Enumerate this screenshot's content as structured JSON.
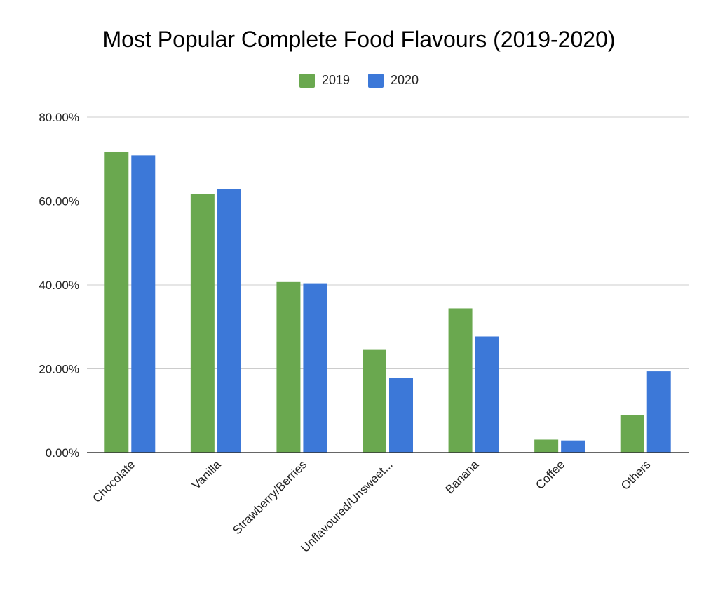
{
  "chart_data": {
    "type": "bar",
    "title": "Most Popular Complete Food Flavours (2019-2020)",
    "xlabel": "",
    "ylabel": "",
    "categories": [
      "Chocolate",
      "Vanilla",
      "Strawberry/Berries",
      "Unflavoured/Unsweet...",
      "Banana",
      "Coffee",
      "Others"
    ],
    "series": [
      {
        "name": "2019",
        "color": "#6aa84f",
        "values": [
          71.8,
          61.6,
          40.7,
          24.5,
          34.4,
          3.1,
          8.9
        ]
      },
      {
        "name": "2020",
        "color": "#3c78d8",
        "values": [
          70.9,
          62.8,
          40.4,
          17.9,
          27.7,
          2.9,
          19.4
        ]
      }
    ],
    "ylim": [
      0,
      80
    ],
    "yticks": [
      "0.00%",
      "20.00%",
      "40.00%",
      "60.00%",
      "80.00%"
    ],
    "grid": true,
    "legend_position": "top-center"
  }
}
